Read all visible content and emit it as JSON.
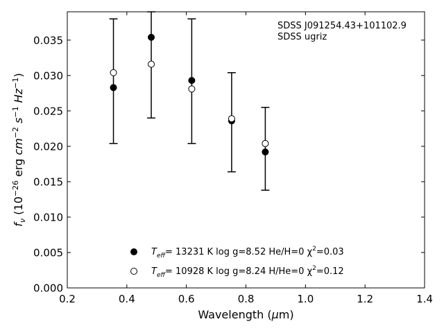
{
  "chart_data": {
    "type": "scatter",
    "title": "",
    "xlabel": "Wavelength (μm)",
    "ylabel": "f_ν (10^−26 erg cm^−2 s^−1 Hz^−1)",
    "xlim": [
      0.2,
      1.4
    ],
    "ylim": [
      0.0,
      0.039
    ],
    "x_ticks": [
      "0.2",
      "0.4",
      "0.6",
      "0.8",
      "1.0",
      "1.2",
      "1.4"
    ],
    "y_ticks": [
      "0.000",
      "0.005",
      "0.010",
      "0.015",
      "0.020",
      "0.025",
      "0.030",
      "0.035"
    ],
    "grid": false,
    "annotations": [
      "SDSS J091254.43+101102.9",
      "SDSS ugriz"
    ],
    "observed": {
      "x": [
        0.355,
        0.482,
        0.618,
        0.752,
        0.865
      ],
      "y_low": [
        0.0204,
        0.024,
        0.0204,
        0.0164,
        0.0138
      ],
      "y_high": [
        0.038,
        0.039,
        0.038,
        0.0304,
        0.0255
      ]
    },
    "series": [
      {
        "name": "T_eff= 13231 K  log g=8.52  He/H=0  χ²=0.03",
        "marker": "filled-circle",
        "x": [
          0.355,
          0.482,
          0.618,
          0.752,
          0.865
        ],
        "y": [
          0.0283,
          0.0354,
          0.0293,
          0.0236,
          0.0192
        ]
      },
      {
        "name": "T_eff= 10928 K  log g=8.24  H/He=0  χ²=0.12",
        "marker": "open-circle",
        "x": [
          0.355,
          0.482,
          0.618,
          0.752,
          0.865
        ],
        "y": [
          0.0304,
          0.0316,
          0.0281,
          0.0239,
          0.0204
        ]
      }
    ],
    "legend": {
      "placement": "lower-center",
      "entries": [
        {
          "marker": "filled",
          "T": "T",
          "T_sub": "eff",
          "text": "= 13231 K  log g=8.52  He/H=0  χ",
          "sup": "2",
          "tail": "=0.03"
        },
        {
          "marker": "open",
          "T": "T",
          "T_sub": "eff",
          "text": "= 10928 K  log g=8.24  H/He=0  χ",
          "sup": "2",
          "tail": "=0.12"
        }
      ]
    },
    "colors": {
      "filled": "#000000",
      "open": "#ffffff",
      "axes": "#000000"
    }
  }
}
